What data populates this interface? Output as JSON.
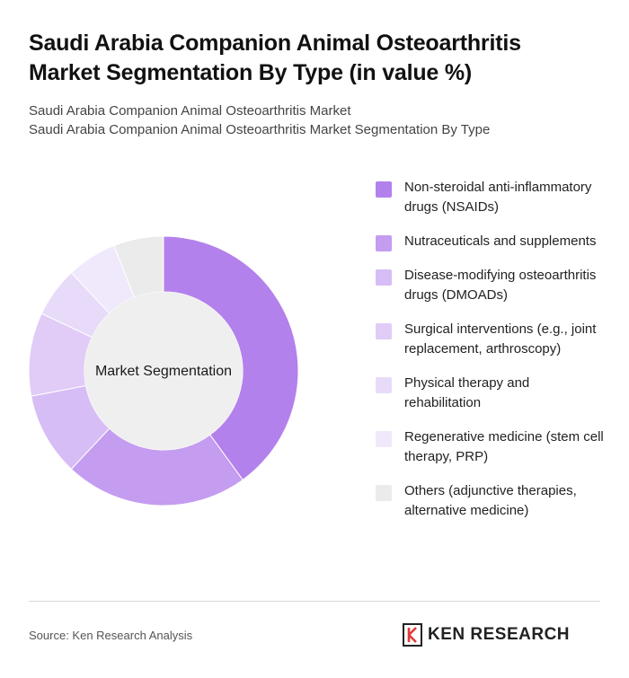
{
  "header": {
    "title": "Saudi Arabia Companion Animal Osteoarthritis Market Segmentation By Type (in value %)",
    "subtitle_line1": "Saudi Arabia Companion Animal Osteoarthritis Market",
    "subtitle_line2": "Saudi Arabia Companion Animal Osteoarthritis Market Segmentation By Type"
  },
  "chart_data": {
    "type": "pie",
    "variant": "donut",
    "center_label": "Market Segmentation",
    "categories": [
      "Non-steroidal anti-inflammatory drugs (NSAIDs)",
      "Nutraceuticals and supplements",
      "Disease-modifying osteoarthritis drugs (DMOADs)",
      "Surgical interventions (e.g., joint replacement, arthroscopy)",
      "Physical therapy and rehabilitation",
      "Regenerative medicine (stem cell therapy, PRP)",
      "Others (adjunctive therapies, alternative medicine)"
    ],
    "values": [
      40,
      22,
      10,
      10,
      6,
      6,
      6
    ],
    "colors": [
      "#b381ec",
      "#c49cf0",
      "#d7bdf5",
      "#e0ccf7",
      "#e8dbf9",
      "#f0e8fb",
      "#ebebeb"
    ],
    "legend_position": "right"
  },
  "footer": {
    "source": "Source: Ken Research Analysis",
    "brand": "KEN RESEARCH"
  }
}
